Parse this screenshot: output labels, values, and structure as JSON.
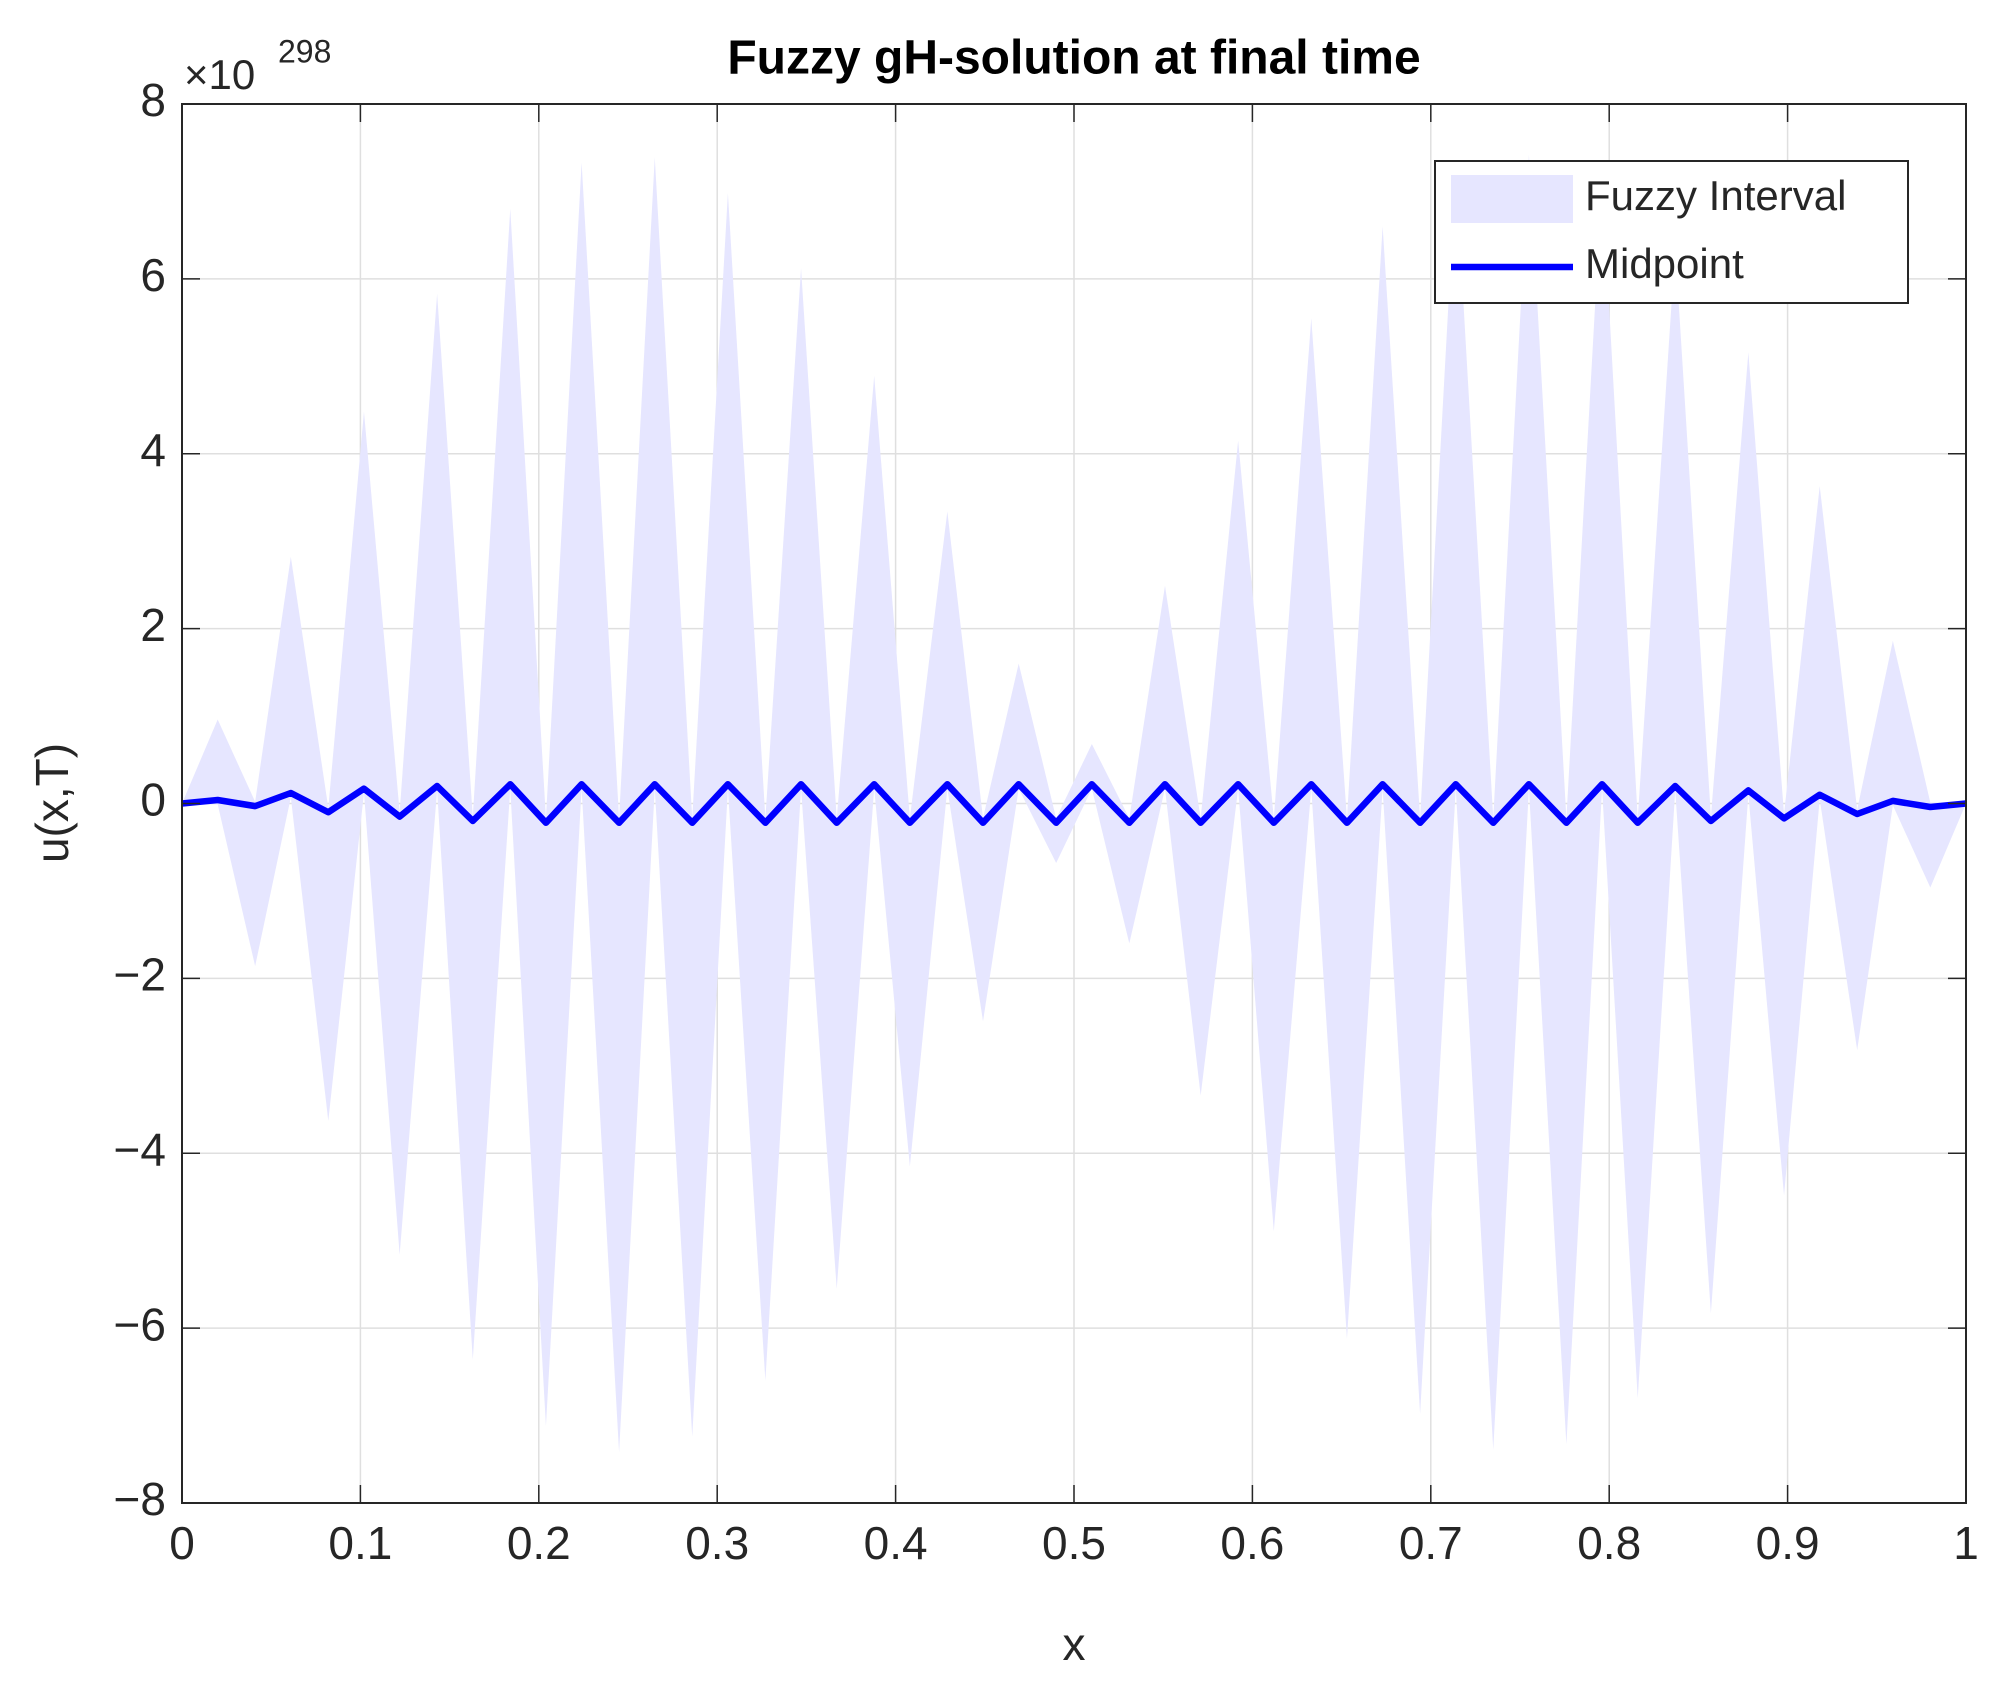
{
  "chart_data": {
    "type": "line",
    "title": "Fuzzy gH-solution at final time",
    "x_label": "x",
    "y_label": "u(x,T)",
    "y_multiplier": {
      "base": "×10",
      "exponent": "298"
    },
    "x": [
      0,
      0.02,
      0.041,
      0.061,
      0.082,
      0.102,
      0.122,
      0.143,
      0.163,
      0.184,
      0.204,
      0.224,
      0.245,
      0.265,
      0.286,
      0.306,
      0.327,
      0.347,
      0.367,
      0.388,
      0.408,
      0.429,
      0.449,
      0.469,
      0.49,
      0.51,
      0.531,
      0.551,
      0.571,
      0.592,
      0.612,
      0.633,
      0.653,
      0.673,
      0.694,
      0.714,
      0.735,
      0.755,
      0.776,
      0.796,
      0.816,
      0.837,
      0.857,
      0.878,
      0.898,
      0.918,
      0.939,
      0.959,
      0.98,
      1
    ],
    "series": [
      {
        "name": "Fuzzy Interval",
        "kind": "band",
        "color": "#e6e6ff",
        "upper": [
          0,
          0.96,
          0.02,
          2.82,
          -0.05,
          4.48,
          -0.1,
          5.83,
          -0.15,
          6.8,
          -0.17,
          7.33,
          -0.17,
          7.39,
          -0.17,
          6.98,
          -0.17,
          6.12,
          -0.17,
          4.89,
          -0.17,
          3.34,
          -0.17,
          1.6,
          -0.17,
          0.68,
          -0.17,
          2.49,
          -0.17,
          4.15,
          -0.17,
          5.55,
          -0.17,
          6.6,
          -0.17,
          7.24,
          -0.17,
          7.42,
          -0.17,
          7.12,
          -0.17,
          6.36,
          -0.15,
          5.16,
          -0.12,
          3.63,
          -0.07,
          1.86,
          0.01,
          0
        ],
        "lower": [
          0,
          -0.01,
          -1.86,
          0.07,
          -3.63,
          0.12,
          -5.16,
          0.15,
          -6.36,
          0.17,
          -7.12,
          0.17,
          -7.42,
          0.17,
          -7.24,
          0.17,
          -6.6,
          0.17,
          -5.55,
          0.17,
          -4.15,
          0.17,
          -2.49,
          0.17,
          -0.68,
          0.17,
          -1.6,
          0.17,
          -3.34,
          0.17,
          -4.89,
          0.17,
          -6.12,
          0.17,
          -6.98,
          0.17,
          -7.39,
          0.17,
          -7.33,
          0.17,
          -6.8,
          0.15,
          -5.83,
          0.1,
          -4.48,
          0.05,
          -2.82,
          -0.02,
          -0.96,
          0
        ]
      },
      {
        "name": "Midpoint",
        "kind": "line",
        "color": "#0000ff",
        "values": [
          0,
          0.04,
          -0.03,
          0.12,
          -0.1,
          0.17,
          -0.15,
          0.2,
          -0.2,
          0.22,
          -0.22,
          0.22,
          -0.22,
          0.22,
          -0.22,
          0.22,
          -0.22,
          0.22,
          -0.22,
          0.22,
          -0.22,
          0.22,
          -0.22,
          0.22,
          -0.22,
          0.22,
          -0.22,
          0.22,
          -0.22,
          0.22,
          -0.22,
          0.22,
          -0.22,
          0.22,
          -0.22,
          0.22,
          -0.22,
          0.22,
          -0.22,
          0.22,
          -0.22,
          0.2,
          -0.2,
          0.15,
          -0.17,
          0.1,
          -0.12,
          0.03,
          -0.04,
          0
        ]
      }
    ],
    "xlim": [
      0,
      1
    ],
    "ylim": [
      -8,
      8
    ],
    "xticks": [
      0,
      0.1,
      0.2,
      0.3,
      0.4,
      0.5,
      0.6,
      0.7,
      0.8,
      0.9,
      1
    ],
    "yticks": [
      {
        "value": -8,
        "label": "−8"
      },
      {
        "value": -6,
        "label": "−6"
      },
      {
        "value": -4,
        "label": "−4"
      },
      {
        "value": -2,
        "label": "−2"
      },
      0,
      2,
      4,
      6,
      8
    ],
    "grid": true,
    "legend": "top-right"
  }
}
